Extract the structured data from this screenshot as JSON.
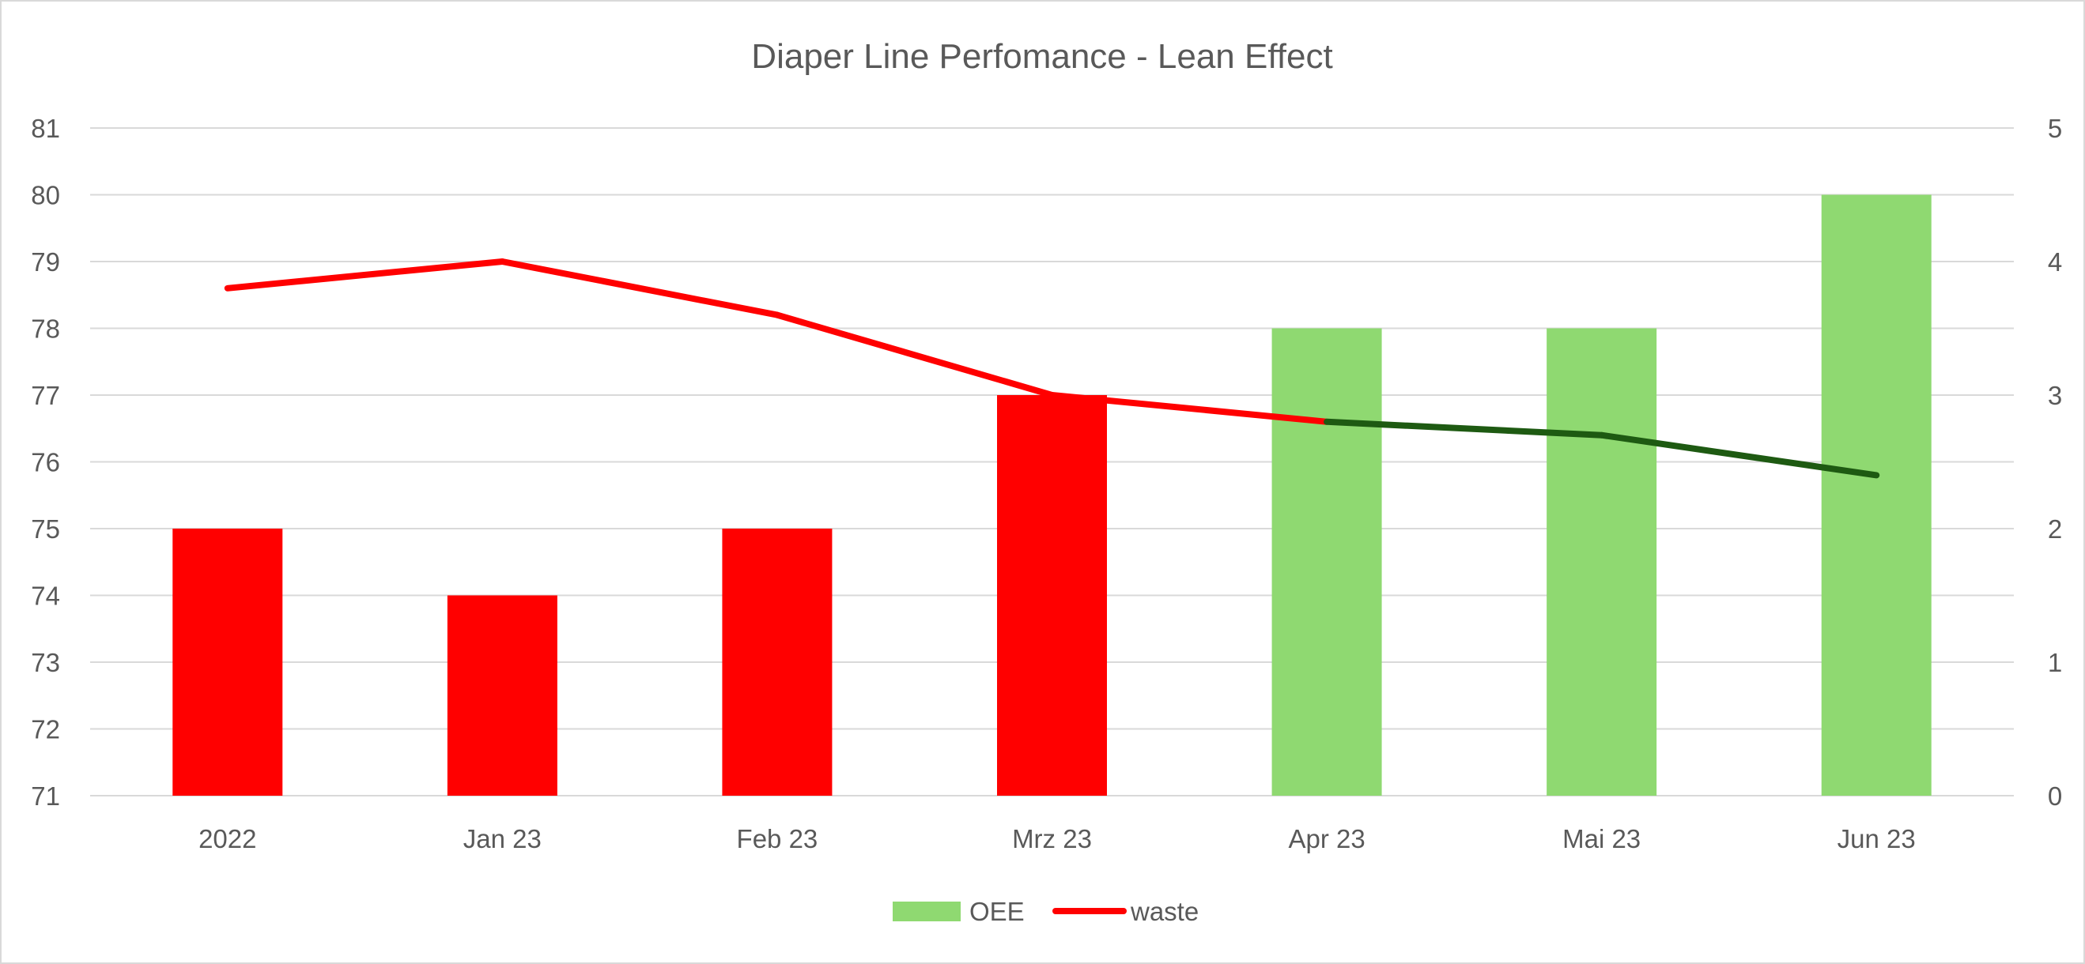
{
  "chart_data": {
    "type": "bar",
    "title": "Diaper Line Perfomance - Lean Effect",
    "categories": [
      "2022",
      "Jan 23",
      "Feb 23",
      "Mrz 23",
      "Apr 23",
      "Mai 23",
      "Jun 23"
    ],
    "series": [
      {
        "name": "OEE",
        "type": "bar",
        "axis": "left",
        "values": [
          75,
          74,
          75,
          77,
          78,
          78,
          80
        ],
        "point_colors": [
          "#ff0000",
          "#ff0000",
          "#ff0000",
          "#ff0000",
          "#8fd971",
          "#8fd971",
          "#8fd971"
        ],
        "legend_color": "#8fd971"
      },
      {
        "name": "waste",
        "type": "line",
        "axis": "right",
        "values": [
          3.8,
          4.0,
          3.6,
          3.0,
          2.8,
          2.7,
          2.4
        ],
        "segment_colors": [
          "#ff0000",
          "#ff0000",
          "#ff0000",
          "#ff0000",
          "#1e5a12",
          "#1e5a12"
        ],
        "legend_color": "#ff0000"
      }
    ],
    "y_left": {
      "min": 71,
      "max": 81,
      "step": 1
    },
    "y_right": {
      "min": 0,
      "max": 5,
      "step": 1
    },
    "grid": true,
    "legend_position": "bottom"
  }
}
